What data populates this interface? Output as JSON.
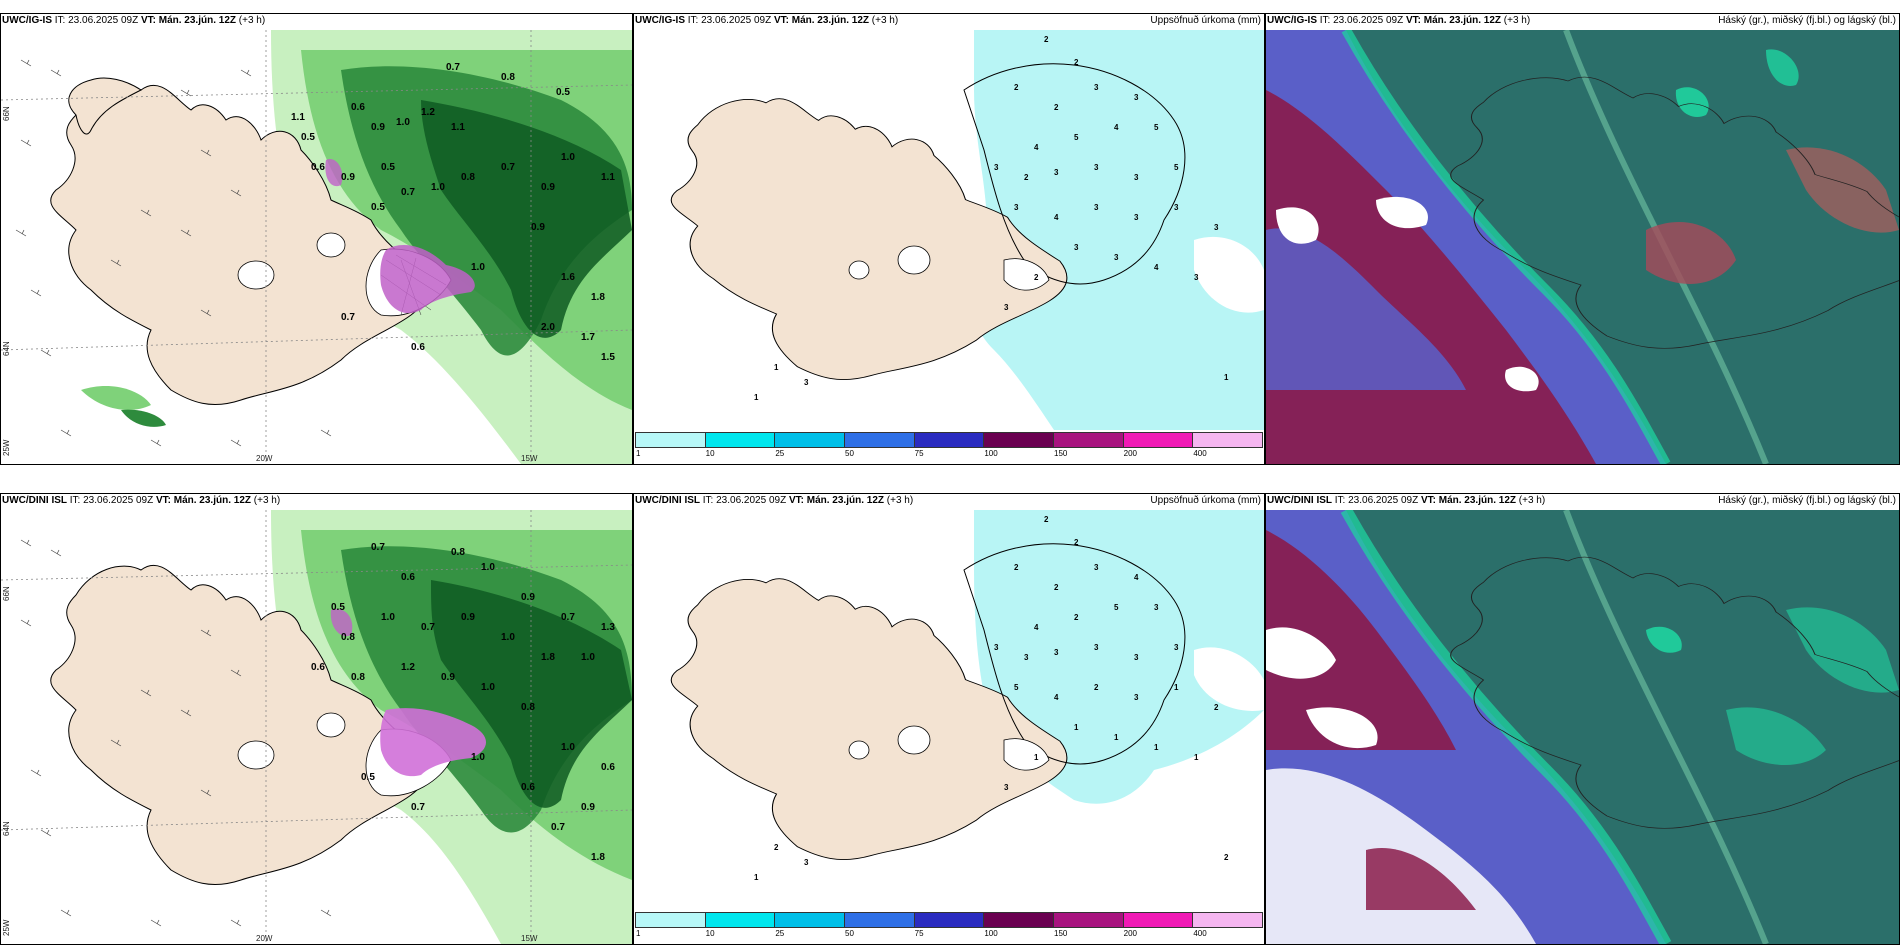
{
  "rows": [
    {
      "model": "UWC/IG-IS",
      "it_label": "IT:",
      "it_value": "23.06.2025 09Z",
      "vt_label": "VT:",
      "vt_value": "Mán. 23.jún. 12Z",
      "lead": "(+3 h)"
    },
    {
      "model": "UWC/DINI ISL",
      "it_label": "IT:",
      "it_value": "23.06.2025 09Z",
      "vt_label": "VT:",
      "vt_value": "Mán. 23.jún. 12Z",
      "lead": "(+3 h)"
    }
  ],
  "precip_title": "Uppsöfnuð úrkoma (mm)",
  "cloud_title": "Háský (gr.), miðský (fj.bl.) og lágský (bl.)",
  "axis_labels": {
    "lat66": "66N",
    "lat64": "64N",
    "lon20": "20W",
    "lon15": "15W",
    "lon25": "25W"
  },
  "colorbar": {
    "ticks": [
      "1",
      "10",
      "25",
      "50",
      "75",
      "100",
      "150",
      "200",
      "400"
    ],
    "colors": [
      "#b7f7f7",
      "#00e6ee",
      "#00bfe8",
      "#2e6fe6",
      "#2a2bc0",
      "#6a0050",
      "#a8137f",
      "#f01ab5",
      "#f5b6f0"
    ]
  },
  "colors": {
    "land": "#f3e3d2",
    "sea": "#ffffff",
    "wind_light": "#c8f0c0",
    "wind_mid": "#7fd27a",
    "wind_dark": "#2e8b3d",
    "wind_darkest": "#0e5a22",
    "precip_cyan": "#b8f5f5",
    "cloud_teal": "#2b6f6a",
    "cloud_blue": "#5a5fc8",
    "cloud_maroon": "#8a1b4a"
  },
  "panel1_numbers": [
    {
      "v": "0.7"
    },
    {
      "v": "0.8"
    },
    {
      "v": "0.5"
    },
    {
      "v": "1.1"
    },
    {
      "v": "0.5"
    },
    {
      "v": "0.6"
    },
    {
      "v": "0.9"
    },
    {
      "v": "1.0"
    },
    {
      "v": "1.2"
    },
    {
      "v": "1.1"
    },
    {
      "v": "0.6"
    },
    {
      "v": "0.9"
    },
    {
      "v": "0.5"
    },
    {
      "v": "0.7"
    },
    {
      "v": "1.0"
    },
    {
      "v": "0.8"
    },
    {
      "v": "0.7"
    },
    {
      "v": "0.9"
    },
    {
      "v": "1.0"
    },
    {
      "v": "1.1"
    },
    {
      "v": "1.6"
    },
    {
      "v": "1.8"
    },
    {
      "v": "1.7"
    },
    {
      "v": "1.5"
    },
    {
      "v": "2.0"
    },
    {
      "v": "0.7"
    },
    {
      "v": "0.6"
    },
    {
      "v": "1.0"
    },
    {
      "v": "0.9"
    },
    {
      "v": "0.5"
    }
  ],
  "panel4_numbers": [
    {
      "v": "0.7"
    },
    {
      "v": "0.6"
    },
    {
      "v": "0.8"
    },
    {
      "v": "1.0"
    },
    {
      "v": "0.9"
    },
    {
      "v": "0.7"
    },
    {
      "v": "1.3"
    },
    {
      "v": "0.5"
    },
    {
      "v": "0.8"
    },
    {
      "v": "1.0"
    },
    {
      "v": "0.7"
    },
    {
      "v": "0.9"
    },
    {
      "v": "1.0"
    },
    {
      "v": "1.8"
    },
    {
      "v": "1.0"
    },
    {
      "v": "0.6"
    },
    {
      "v": "0.8"
    },
    {
      "v": "1.2"
    },
    {
      "v": "0.9"
    },
    {
      "v": "1.0"
    },
    {
      "v": "0.8"
    },
    {
      "v": "1.0"
    },
    {
      "v": "0.6"
    },
    {
      "v": "0.7"
    },
    {
      "v": "0.9"
    },
    {
      "v": "1.8"
    },
    {
      "v": "0.5"
    },
    {
      "v": "0.7"
    },
    {
      "v": "1.0"
    },
    {
      "v": "0.6"
    }
  ],
  "precip_numbers_top": [
    "2",
    "2",
    "2",
    "2",
    "3",
    "3",
    "5",
    "4",
    "5",
    "4",
    "3",
    "2",
    "3",
    "3",
    "3",
    "5",
    "3",
    "4",
    "3",
    "3",
    "3",
    "3",
    "3",
    "4",
    "3",
    "3",
    "2",
    "3",
    "1",
    "1",
    "3",
    "1"
  ],
  "precip_numbers_bottom": [
    "2",
    "2",
    "2",
    "2",
    "3",
    "4",
    "3",
    "5",
    "2",
    "4",
    "3",
    "3",
    "3",
    "3",
    "3",
    "3",
    "5",
    "4",
    "2",
    "3",
    "1",
    "2",
    "1",
    "1",
    "1",
    "1",
    "1",
    "3",
    "2",
    "1",
    "3",
    "2"
  ]
}
